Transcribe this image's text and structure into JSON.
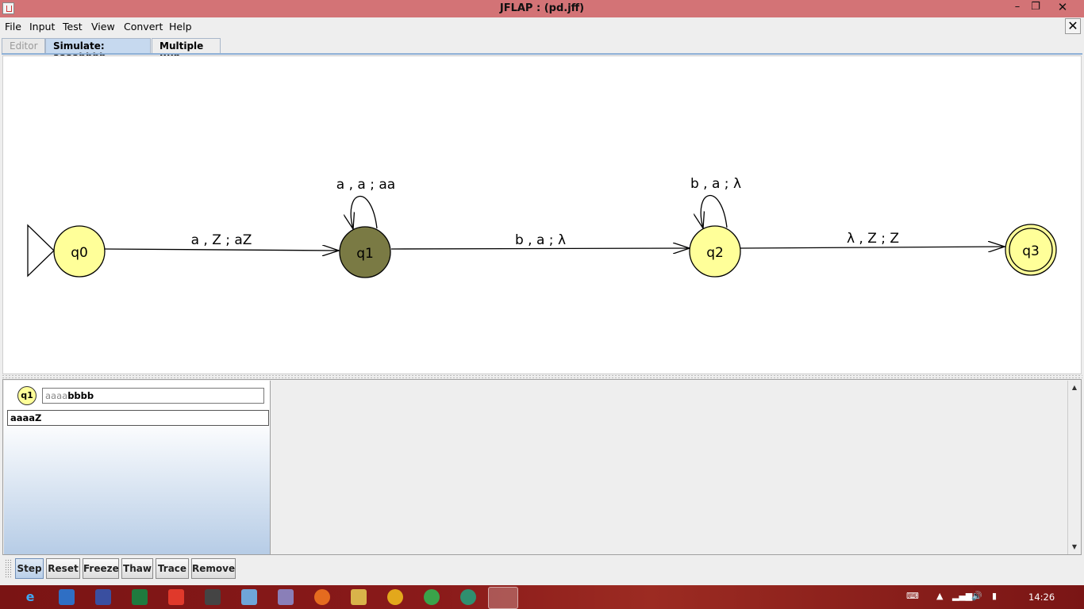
{
  "window": {
    "title": "JFLAP : (pd.jff)",
    "minimize_glyph": "–",
    "maximize_glyph": "❐",
    "close_glyph": "✕"
  },
  "menu": {
    "items": [
      "File",
      "Input",
      "Test",
      "View",
      "Convert",
      "Help"
    ],
    "dismiss_glyph": "✕"
  },
  "tabs": [
    {
      "label": "Editor",
      "state": "disabled"
    },
    {
      "label": "Simulate: aaaabbbb",
      "state": "active"
    },
    {
      "label": "Multiple Run",
      "state": "normal"
    }
  ],
  "automaton": {
    "states": [
      {
        "id": "q0",
        "initial": true,
        "final": false,
        "highlighted": false
      },
      {
        "id": "q1",
        "initial": false,
        "final": false,
        "highlighted": true
      },
      {
        "id": "q2",
        "initial": false,
        "final": false,
        "highlighted": false
      },
      {
        "id": "q3",
        "initial": false,
        "final": true,
        "highlighted": false
      }
    ],
    "transitions": [
      {
        "from": "q0",
        "to": "q1",
        "label": "a , Z ; aZ"
      },
      {
        "from": "q1",
        "to": "q1",
        "label": "a , a ; aa"
      },
      {
        "from": "q1",
        "to": "q2",
        "label": "b , a ; λ"
      },
      {
        "from": "q2",
        "to": "q2",
        "label": "b , a ; λ"
      },
      {
        "from": "q2",
        "to": "q3",
        "label": "λ , Z ; Z"
      }
    ],
    "colors": {
      "state_fill": "#ffff99",
      "highlighted_fill": "#7a7a44",
      "stroke": "#000000"
    }
  },
  "configuration": {
    "state": "q1",
    "input_consumed": "aaaa",
    "input_remaining": "bbbb",
    "stack": "aaaaZ"
  },
  "toolbar": {
    "buttons": [
      "Step",
      "Reset",
      "Freeze",
      "Thaw",
      "Trace",
      "Remove"
    ]
  },
  "taskbar": {
    "clock": "14:26"
  }
}
